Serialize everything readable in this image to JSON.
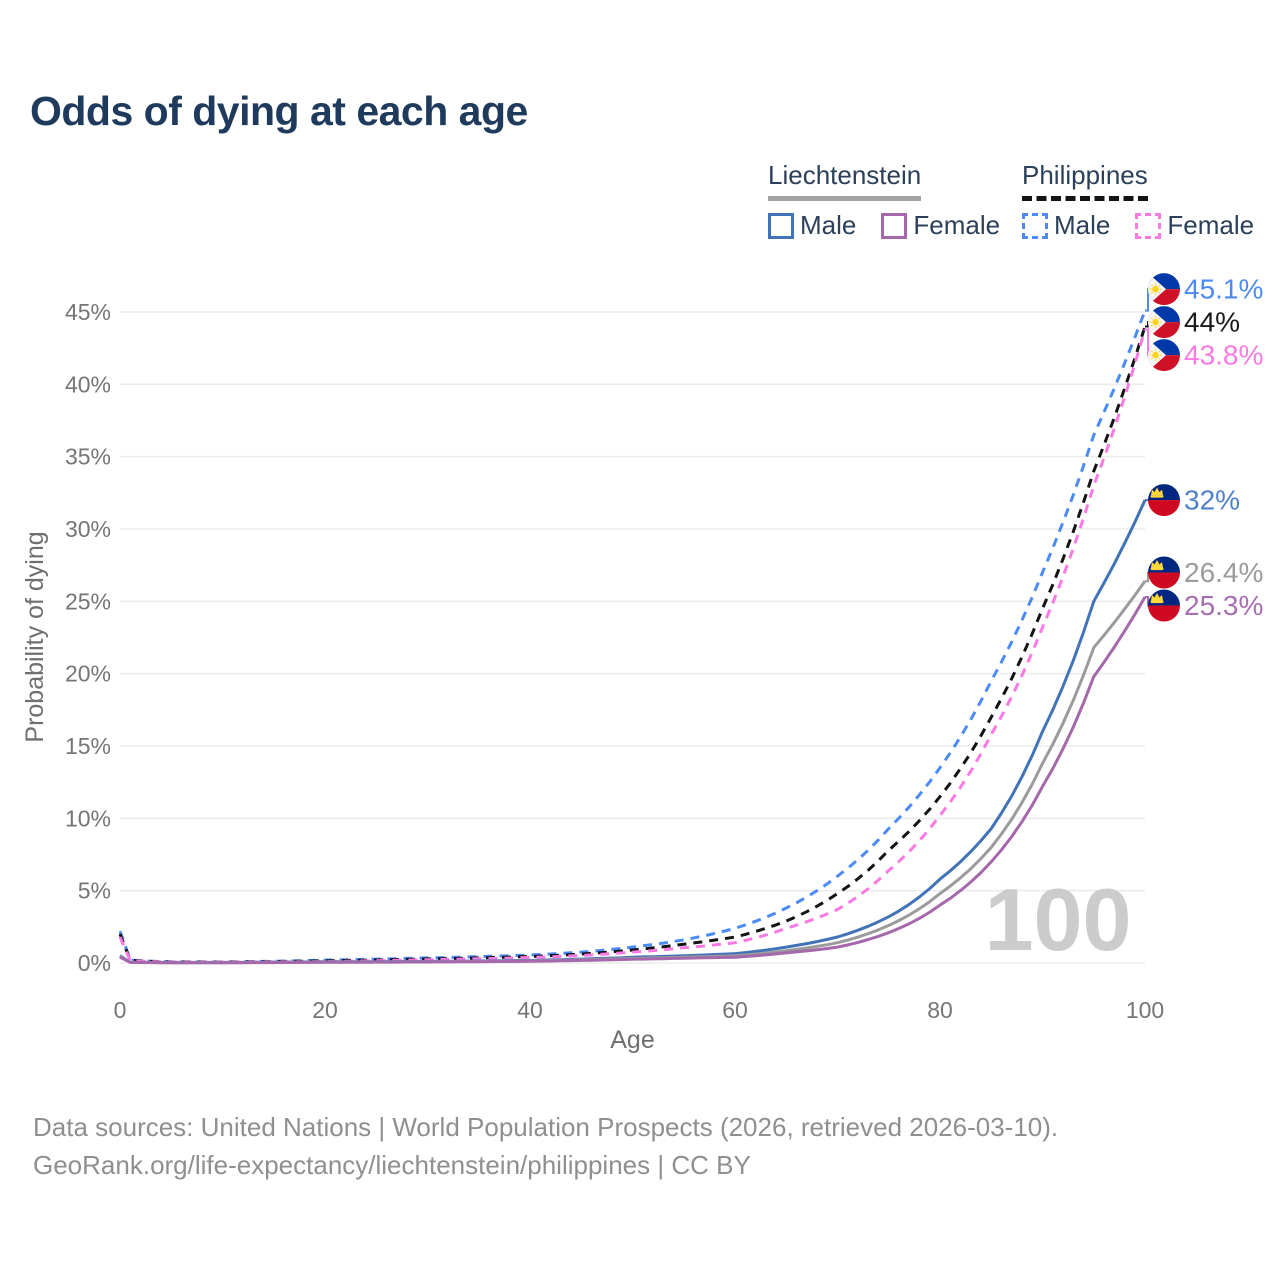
{
  "title": "Odds of dying at each age",
  "watermark": "100",
  "legend": {
    "groups": [
      {
        "label": "Liechtenstein",
        "line_style": "solid",
        "underline_color": "#a3a3a3",
        "items": [
          {
            "label": "Male",
            "color": "#4273b8"
          },
          {
            "label": "Female",
            "color": "#a468ab"
          }
        ]
      },
      {
        "label": "Philippines",
        "line_style": "dashed",
        "underline_color": "#141414",
        "items": [
          {
            "label": "Male",
            "color": "#4c8bf5"
          },
          {
            "label": "Female",
            "color": "#fb79e3"
          }
        ]
      }
    ]
  },
  "footer": {
    "line1": "Data sources: United Nations | World Population Prospects (2026, retrieved 2026-03-10).",
    "line2": "GeoRank.org/life-expectancy/liechtenstein/philippines | CC BY"
  },
  "chart_data": {
    "type": "line",
    "title": "Odds of dying at each age",
    "xlabel": "Age",
    "ylabel": "Probability of dying",
    "xlim": [
      0,
      100
    ],
    "ylim": [
      0,
      45
    ],
    "grid": "horizontal-only",
    "legend_position": "top-right",
    "x_ticks": [
      {
        "value": 0,
        "label": "0"
      },
      {
        "value": 20,
        "label": "20"
      },
      {
        "value": 40,
        "label": "40"
      },
      {
        "value": 60,
        "label": "60"
      },
      {
        "value": 80,
        "label": "80"
      },
      {
        "value": 100,
        "label": "100"
      }
    ],
    "y_ticks": [
      {
        "value": 0,
        "label": "0%"
      },
      {
        "value": 5,
        "label": "5%"
      },
      {
        "value": 10,
        "label": "10%"
      },
      {
        "value": 15,
        "label": "15%"
      },
      {
        "value": 20,
        "label": "20%"
      },
      {
        "value": 25,
        "label": "25%"
      },
      {
        "value": 30,
        "label": "30%"
      },
      {
        "value": 35,
        "label": "35%"
      },
      {
        "value": 40,
        "label": "40%"
      },
      {
        "value": 45,
        "label": "45%"
      }
    ],
    "ages": [
      0,
      1,
      5,
      10,
      15,
      20,
      25,
      30,
      35,
      40,
      45,
      50,
      55,
      60,
      65,
      70,
      75,
      80,
      85,
      90,
      95,
      100
    ],
    "unit": "percent",
    "series": [
      {
        "id": "ph-male",
        "name": "Philippines — Male",
        "country": "PH",
        "sex": "male",
        "color": "#4c8bf5",
        "label_color": "#4c8bf5",
        "dash": true,
        "end_label": "45.1%",
        "end_value": 45.1,
        "values": [
          2.2,
          0.2,
          0.08,
          0.07,
          0.12,
          0.2,
          0.27,
          0.35,
          0.44,
          0.55,
          0.75,
          1.1,
          1.6,
          2.4,
          3.8,
          6.0,
          9.3,
          13.5,
          19.5,
          27.0,
          36.5,
          45.1
        ]
      },
      {
        "id": "ph-both",
        "name": "Philippines — Both sexes",
        "country": "PH",
        "sex": "both",
        "color": "#141414",
        "label_color": "#1a1a1a",
        "dash": true,
        "end_label": "44%",
        "end_value": 44,
        "values": [
          2.0,
          0.18,
          0.07,
          0.06,
          0.1,
          0.15,
          0.21,
          0.28,
          0.35,
          0.45,
          0.62,
          0.9,
          1.3,
          1.8,
          2.9,
          4.8,
          7.8,
          11.5,
          17.0,
          24.5,
          34.0,
          44.0
        ]
      },
      {
        "id": "ph-female",
        "name": "Philippines — Female",
        "country": "PH",
        "sex": "female",
        "color": "#fb79e3",
        "label_color": "#fb79e3",
        "dash": true,
        "end_label": "43.8%",
        "end_value": 43.8,
        "values": [
          1.8,
          0.16,
          0.06,
          0.05,
          0.08,
          0.1,
          0.16,
          0.22,
          0.29,
          0.38,
          0.52,
          0.75,
          1.05,
          1.4,
          2.4,
          3.7,
          6.4,
          10.2,
          15.8,
          23.2,
          33.0,
          43.8
        ]
      },
      {
        "id": "li-male",
        "name": "Liechtenstein — Male",
        "country": "LI",
        "sex": "male",
        "color": "#4273b8",
        "label_color": "#4f80cc",
        "dash": false,
        "end_label": "32%",
        "end_value": 32,
        "values": [
          0.5,
          0.05,
          0.03,
          0.03,
          0.05,
          0.08,
          0.09,
          0.11,
          0.14,
          0.18,
          0.27,
          0.4,
          0.5,
          0.65,
          1.1,
          1.8,
          3.2,
          5.8,
          9.3,
          16.0,
          25.0,
          32.0
        ]
      },
      {
        "id": "li-both",
        "name": "Liechtenstein — Both sexes",
        "country": "LI",
        "sex": "both",
        "color": "#9b9b9b",
        "label_color": "#9b9b9b",
        "dash": false,
        "end_label": "26.4%",
        "end_value": 26.4,
        "values": [
          0.45,
          0.045,
          0.025,
          0.025,
          0.04,
          0.06,
          0.07,
          0.09,
          0.11,
          0.15,
          0.22,
          0.32,
          0.4,
          0.5,
          0.85,
          1.4,
          2.6,
          4.8,
          8.0,
          13.8,
          21.8,
          26.4
        ]
      },
      {
        "id": "li-female",
        "name": "Liechtenstein — Female",
        "country": "LI",
        "sex": "female",
        "color": "#a468ab",
        "label_color": "#a76fb3",
        "dash": false,
        "end_label": "25.3%",
        "end_value": 25.3,
        "values": [
          0.4,
          0.04,
          0.02,
          0.02,
          0.03,
          0.05,
          0.06,
          0.07,
          0.09,
          0.12,
          0.18,
          0.26,
          0.33,
          0.4,
          0.7,
          1.1,
          2.1,
          4.0,
          7.0,
          12.2,
          19.8,
          25.3
        ]
      }
    ],
    "flag_colors": {
      "ph_blue": "#0038a8",
      "ph_red": "#ce1126",
      "ph_white": "#f5f5f5",
      "ph_sun": "#fcd116",
      "li_blue": "#002780",
      "li_red": "#cf0921",
      "li_crown": "#ffd83c"
    }
  }
}
